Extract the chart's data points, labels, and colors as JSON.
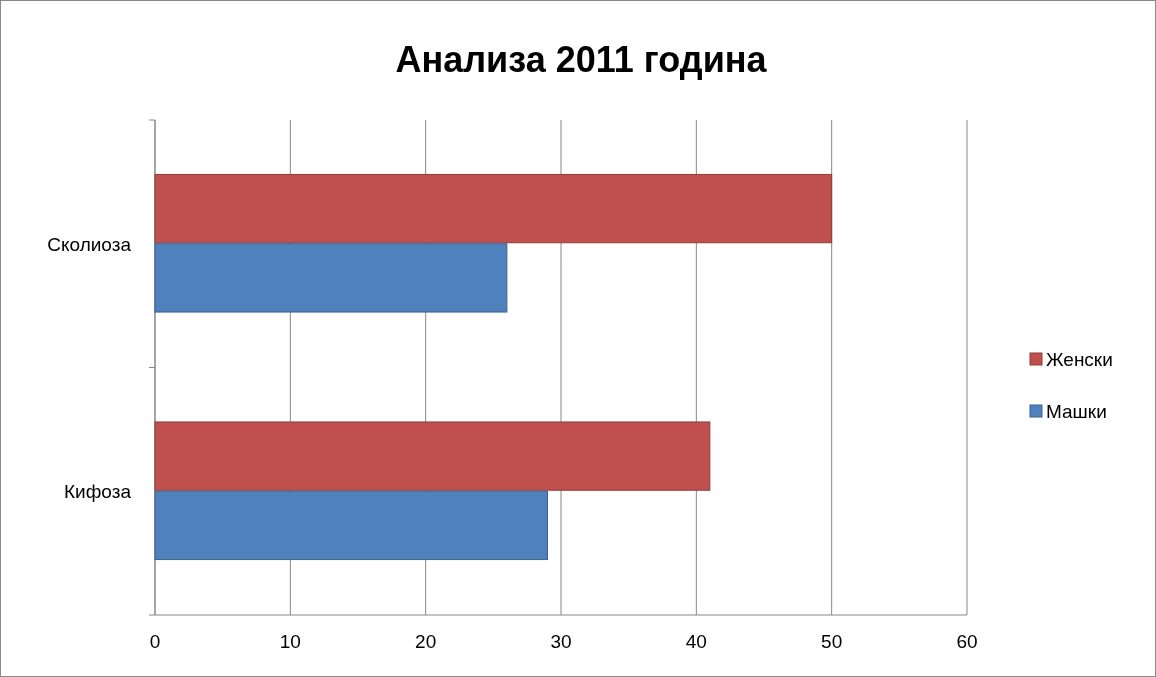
{
  "chart_data": {
    "type": "bar",
    "orientation": "horizontal",
    "title": "Анализа 2011 година",
    "categories": [
      "Сколиоза",
      "Кифоза"
    ],
    "series": [
      {
        "name": "Женски",
        "color": "#c0504d",
        "values": [
          50,
          41
        ]
      },
      {
        "name": "Машки",
        "color": "#4f81bd",
        "values": [
          26,
          29
        ]
      }
    ],
    "xlim": [
      0,
      60
    ],
    "xticks": [
      0,
      10,
      20,
      30,
      40,
      50,
      60
    ],
    "grid": "x",
    "legend": "right"
  }
}
